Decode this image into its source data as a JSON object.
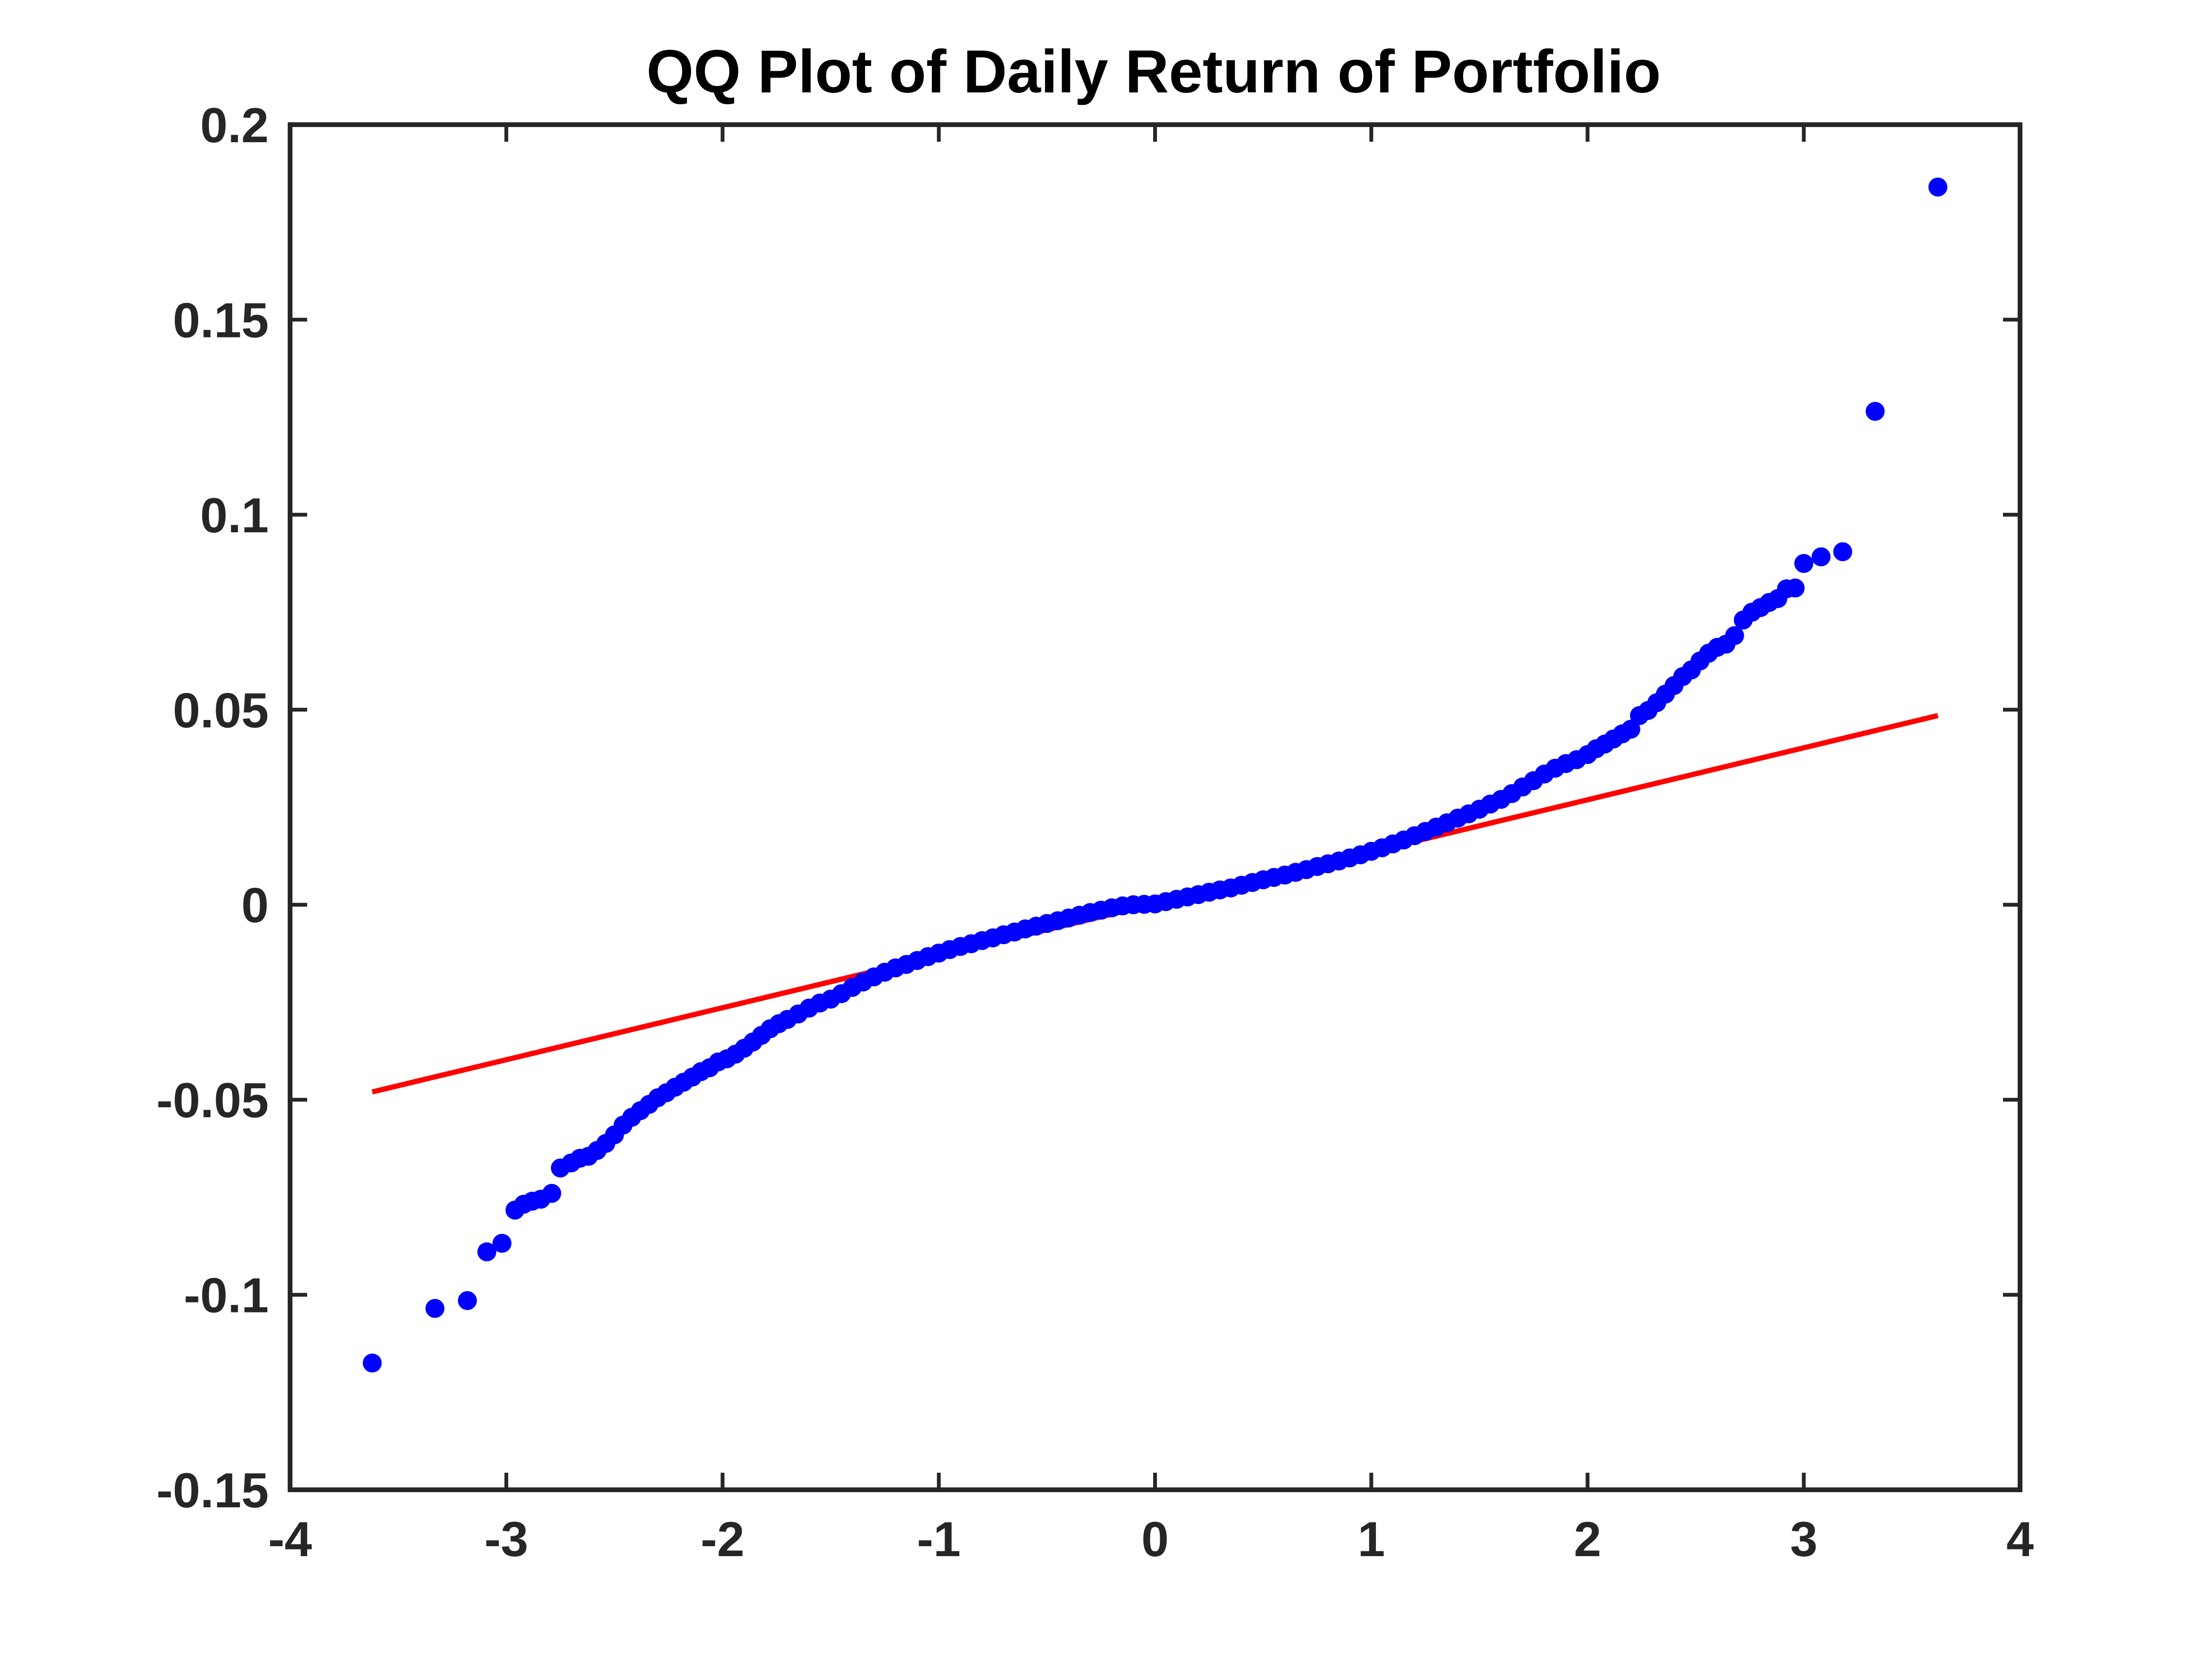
{
  "chart_data": {
    "type": "scatter",
    "title": "QQ Plot of Daily Return of Portfolio",
    "xlabel": "",
    "ylabel": "",
    "xlim": [
      -4,
      4
    ],
    "ylim": [
      -0.15,
      0.2
    ],
    "x_ticks": [
      -4,
      -3,
      -2,
      -1,
      0,
      1,
      2,
      3,
      4
    ],
    "x_tick_labels": [
      "-4",
      "-3",
      "-2",
      "-1",
      "0",
      "1",
      "2",
      "3",
      "4"
    ],
    "y_ticks": [
      -0.15,
      -0.1,
      -0.05,
      0,
      0.05,
      0.1,
      0.15,
      0.2
    ],
    "y_tick_labels": [
      "-0.15",
      "-0.1",
      "-0.05",
      "0",
      "0.05",
      "0.1",
      "0.15",
      "0.2"
    ],
    "grid": false,
    "legend": "none",
    "colors": {
      "points": "#0000ff",
      "reference_line": "#ff0000",
      "axes": "#262626"
    },
    "series": [
      {
        "kind": "scatter",
        "points": [
          [
            -3.62,
            -0.1175
          ],
          [
            -3.33,
            -0.1035
          ],
          [
            -3.18,
            -0.1015
          ],
          [
            -3.09,
            -0.089
          ],
          [
            -3.02,
            -0.0868
          ],
          [
            -2.96,
            -0.0783
          ],
          [
            -2.92,
            -0.0768
          ],
          [
            -2.88,
            -0.076
          ],
          [
            -2.84,
            -0.0755
          ],
          [
            -2.79,
            -0.074
          ],
          [
            -2.75,
            -0.0675
          ],
          [
            -2.7,
            -0.0662
          ],
          [
            -2.66,
            -0.065
          ],
          [
            -2.62,
            -0.0645
          ],
          [
            -2.58,
            -0.063
          ],
          [
            -2.54,
            -0.0612
          ],
          [
            -2.5,
            -0.059
          ],
          [
            -2.46,
            -0.0565
          ],
          [
            -2.42,
            -0.0545
          ],
          [
            -2.38,
            -0.0528
          ],
          [
            -2.34,
            -0.0512
          ],
          [
            -2.3,
            -0.0495
          ],
          [
            -2.26,
            -0.0482
          ],
          [
            -2.22,
            -0.0468
          ],
          [
            -2.18,
            -0.0455
          ],
          [
            -2.14,
            -0.0442
          ],
          [
            -2.1,
            -0.0428
          ],
          [
            -2.06,
            -0.0418
          ],
          [
            -2.02,
            -0.0403
          ],
          [
            -1.98,
            -0.0395
          ],
          [
            -1.94,
            -0.0383
          ],
          [
            -1.9,
            -0.0368
          ],
          [
            -1.86,
            -0.0352
          ],
          [
            -1.82,
            -0.0335
          ],
          [
            -1.78,
            -0.0318
          ],
          [
            -1.74,
            -0.0305
          ],
          [
            -1.7,
            -0.0294
          ],
          [
            -1.65,
            -0.028
          ],
          [
            -1.6,
            -0.0265
          ],
          [
            -1.55,
            -0.0252
          ],
          [
            -1.5,
            -0.0242
          ],
          [
            -1.45,
            -0.0228
          ],
          [
            -1.4,
            -0.0212
          ],
          [
            -1.35,
            -0.0198
          ],
          [
            -1.3,
            -0.0185
          ],
          [
            -1.25,
            -0.0173
          ],
          [
            -1.2,
            -0.0162
          ],
          [
            -1.15,
            -0.0153
          ],
          [
            -1.1,
            -0.0143
          ],
          [
            -1.05,
            -0.0133
          ],
          [
            -1.0,
            -0.0124
          ],
          [
            -0.95,
            -0.0115
          ],
          [
            -0.9,
            -0.0107
          ],
          [
            -0.85,
            -0.01
          ],
          [
            -0.8,
            -0.0092
          ],
          [
            -0.75,
            -0.0085
          ],
          [
            -0.7,
            -0.0077
          ],
          [
            -0.65,
            -0.007
          ],
          [
            -0.6,
            -0.0062
          ],
          [
            -0.55,
            -0.0055
          ],
          [
            -0.5,
            -0.0048
          ],
          [
            -0.45,
            -0.0041
          ],
          [
            -0.4,
            -0.0034
          ],
          [
            -0.35,
            -0.0027
          ],
          [
            -0.3,
            -0.002
          ],
          [
            -0.25,
            -0.0014
          ],
          [
            -0.2,
            -0.0008
          ],
          [
            -0.15,
            -0.0003
          ],
          [
            -0.1,
            0.0
          ],
          [
            -0.05,
            0.0001
          ],
          [
            0.0,
            0.0002
          ],
          [
            0.05,
            0.0008
          ],
          [
            0.1,
            0.0014
          ],
          [
            0.15,
            0.002
          ],
          [
            0.2,
            0.0026
          ],
          [
            0.25,
            0.0032
          ],
          [
            0.3,
            0.0038
          ],
          [
            0.35,
            0.0043
          ],
          [
            0.4,
            0.005
          ],
          [
            0.45,
            0.0057
          ],
          [
            0.5,
            0.0064
          ],
          [
            0.55,
            0.007
          ],
          [
            0.6,
            0.0076
          ],
          [
            0.65,
            0.0083
          ],
          [
            0.7,
            0.009
          ],
          [
            0.75,
            0.0098
          ],
          [
            0.8,
            0.0105
          ],
          [
            0.85,
            0.0112
          ],
          [
            0.9,
            0.012
          ],
          [
            0.95,
            0.0128
          ],
          [
            1.0,
            0.0137
          ],
          [
            1.05,
            0.0146
          ],
          [
            1.1,
            0.0156
          ],
          [
            1.15,
            0.0166
          ],
          [
            1.2,
            0.0177
          ],
          [
            1.25,
            0.0188
          ],
          [
            1.3,
            0.0199
          ],
          [
            1.35,
            0.021
          ],
          [
            1.4,
            0.0222
          ],
          [
            1.45,
            0.0233
          ],
          [
            1.5,
            0.0245
          ],
          [
            1.55,
            0.0258
          ],
          [
            1.6,
            0.027
          ],
          [
            1.65,
            0.0285
          ],
          [
            1.7,
            0.0302
          ],
          [
            1.75,
            0.0318
          ],
          [
            1.8,
            0.0335
          ],
          [
            1.85,
            0.035
          ],
          [
            1.9,
            0.0362
          ],
          [
            1.95,
            0.0372
          ],
          [
            2.0,
            0.0385
          ],
          [
            2.04,
            0.04
          ],
          [
            2.08,
            0.0412
          ],
          [
            2.12,
            0.0425
          ],
          [
            2.16,
            0.0438
          ],
          [
            2.2,
            0.045
          ],
          [
            2.24,
            0.0485
          ],
          [
            2.28,
            0.0498
          ],
          [
            2.32,
            0.0518
          ],
          [
            2.36,
            0.054
          ],
          [
            2.4,
            0.0562
          ],
          [
            2.44,
            0.0585
          ],
          [
            2.48,
            0.0602
          ],
          [
            2.52,
            0.0625
          ],
          [
            2.56,
            0.0645
          ],
          [
            2.6,
            0.066
          ],
          [
            2.64,
            0.0668
          ],
          [
            2.68,
            0.069
          ],
          [
            2.72,
            0.073
          ],
          [
            2.76,
            0.075
          ],
          [
            2.8,
            0.0762
          ],
          [
            2.84,
            0.0775
          ],
          [
            2.88,
            0.0785
          ],
          [
            2.92,
            0.081
          ],
          [
            2.96,
            0.0812
          ],
          [
            3.0,
            0.0875
          ],
          [
            3.08,
            0.0892
          ],
          [
            3.18,
            0.0905
          ],
          [
            3.33,
            0.1265
          ],
          [
            3.62,
            0.184
          ]
        ]
      },
      {
        "kind": "line",
        "points": [
          [
            -3.62,
            -0.048
          ],
          [
            3.62,
            0.0485
          ]
        ]
      }
    ]
  }
}
